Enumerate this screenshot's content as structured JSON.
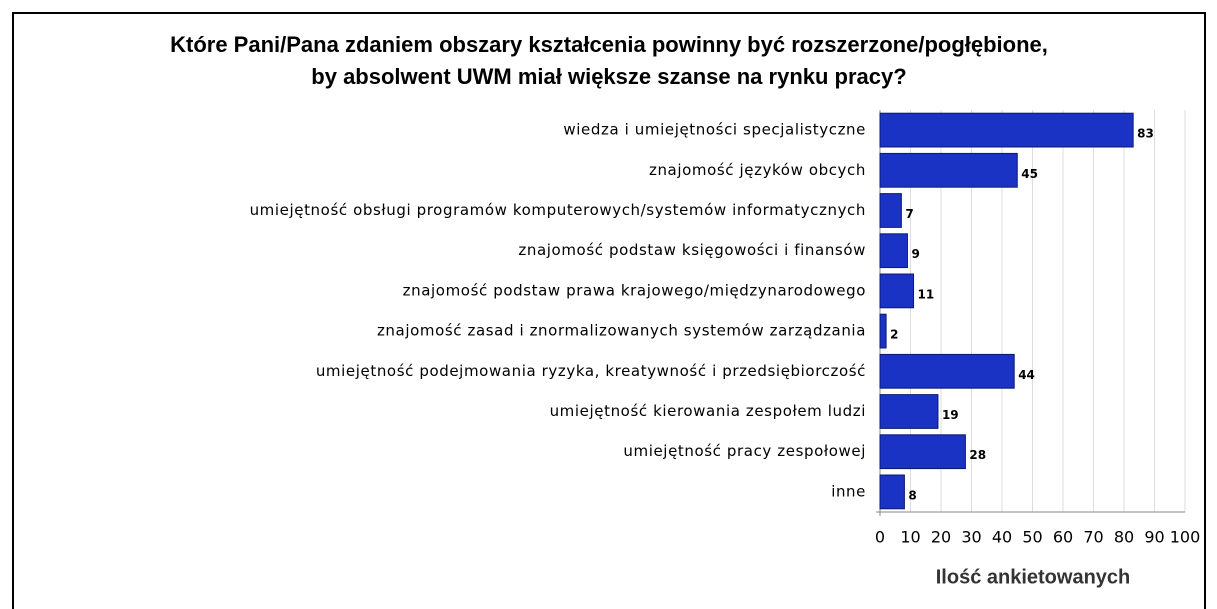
{
  "chart_data": {
    "type": "bar",
    "orientation": "horizontal",
    "title": [
      "Które Pani/Pana zdaniem obszary kształcenia powinny być rozszerzone/pogłębione,",
      "by absolwent UWM miał większe szanse na rynku pracy?"
    ],
    "x_label": "Ilość ankietowanych",
    "categories": [
      "wiedza i umiejętności specjalistyczne",
      "znajomość języków obcych",
      "umiejętność obsługi programów komputerowych/systemów informatycznych",
      "znajomość  podstaw księgowości i finansów",
      "znajomość podstaw prawa krajowego/międzynarodowego",
      "znajomość zasad i znormalizowanych systemów zarządzania",
      "umiejętność podejmowania ryzyka, kreatywność i przedsiębiorczość",
      "umiejętność kierowania zespołem ludzi",
      "umiejętność pracy zespołowej",
      "inne"
    ],
    "values": [
      83,
      45,
      7,
      9,
      11,
      2,
      44,
      19,
      28,
      8
    ],
    "color": "#1b33c4",
    "xlim": [
      0,
      100
    ],
    "xticks": [
      0,
      10,
      20,
      30,
      40,
      50,
      60,
      70,
      80,
      90,
      100
    ],
    "grid": true
  }
}
